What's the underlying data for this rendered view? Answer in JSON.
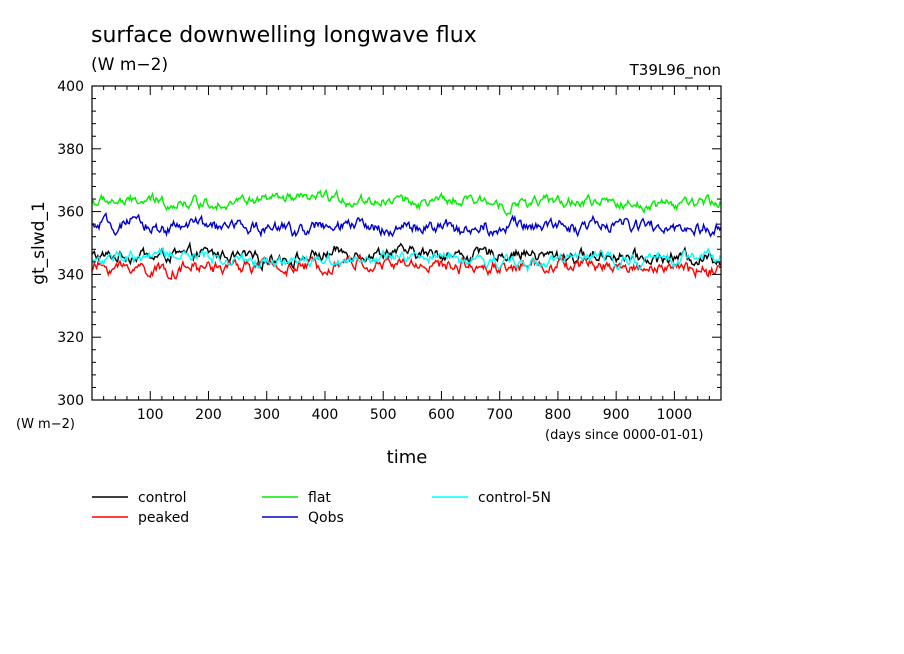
{
  "page": {
    "title": "surface downwelling longwave flux",
    "units": "(W m−2)",
    "run": "T39L96_non"
  },
  "chart_data": {
    "type": "line",
    "title": "surface downwelling longwave flux",
    "subtitle": "(W m−2)",
    "annotation": "T39L96_non",
    "xlabel": "time",
    "xunits": "(days since 0000-01-01)",
    "ylabel": "gt_slwd_1",
    "yunits": "(W m−2)",
    "xlim": [
      0,
      1080
    ],
    "ylim": [
      300,
      400
    ],
    "xticks": [
      "100",
      "200",
      "300",
      "400",
      "500",
      "600",
      "700",
      "800",
      "900",
      "1000"
    ],
    "yticks": [
      "300",
      "320",
      "340",
      "360",
      "380",
      "400"
    ],
    "grid": false,
    "legend_position": "below plot",
    "series": [
      {
        "name": "control",
        "color": "#000000",
        "mean": 346,
        "amplitude": 1.8
      },
      {
        "name": "peaked",
        "color": "#ff0000",
        "mean": 342,
        "amplitude": 1.9
      },
      {
        "name": "flat",
        "color": "#00ee00",
        "mean": 363,
        "amplitude": 1.6
      },
      {
        "name": "Qobs",
        "color": "#0000cc",
        "mean": 355,
        "amplitude": 1.9
      },
      {
        "name": "control-5N",
        "color": "#00ffff",
        "mean": 345,
        "amplitude": 1.6
      }
    ]
  }
}
